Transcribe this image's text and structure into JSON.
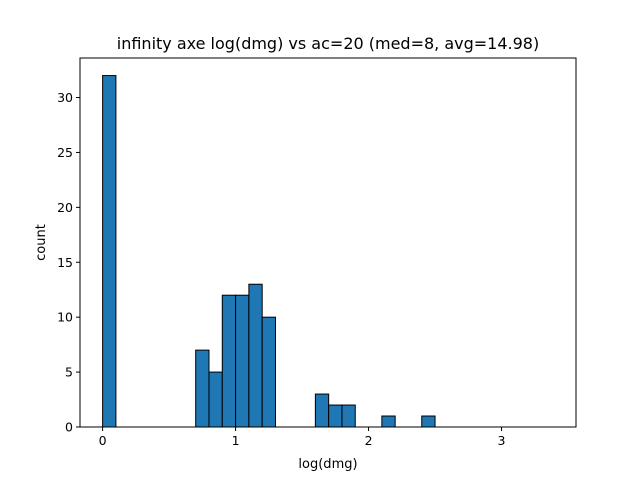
{
  "chart_data": {
    "type": "bar",
    "title": "infinity axe log(dmg) vs ac=20 (med=8, avg=14.98)",
    "xlabel": "log(dmg)",
    "ylabel": "count",
    "xlim": [
      -0.17,
      3.56
    ],
    "ylim": [
      0,
      33.6
    ],
    "xticks": [
      0,
      1,
      2,
      3
    ],
    "yticks": [
      0,
      5,
      10,
      15,
      20,
      25,
      30
    ],
    "bin_width": 0.1,
    "bar_color": "#1f77b4",
    "edge_color": "#000000",
    "bins": [
      {
        "x0": 0.0,
        "count": 32
      },
      {
        "x0": 0.1,
        "count": 0
      },
      {
        "x0": 0.2,
        "count": 0
      },
      {
        "x0": 0.3,
        "count": 0
      },
      {
        "x0": 0.4,
        "count": 0
      },
      {
        "x0": 0.5,
        "count": 0
      },
      {
        "x0": 0.6,
        "count": 0
      },
      {
        "x0": 0.7,
        "count": 7
      },
      {
        "x0": 0.8,
        "count": 5
      },
      {
        "x0": 0.9,
        "count": 12
      },
      {
        "x0": 1.0,
        "count": 12
      },
      {
        "x0": 1.1,
        "count": 13
      },
      {
        "x0": 1.2,
        "count": 10
      },
      {
        "x0": 1.3,
        "count": 0
      },
      {
        "x0": 1.4,
        "count": 0
      },
      {
        "x0": 1.5,
        "count": 0
      },
      {
        "x0": 1.6,
        "count": 3
      },
      {
        "x0": 1.7,
        "count": 2
      },
      {
        "x0": 1.8,
        "count": 2
      },
      {
        "x0": 1.9,
        "count": 0
      },
      {
        "x0": 2.0,
        "count": 0
      },
      {
        "x0": 2.1,
        "count": 1
      },
      {
        "x0": 2.2,
        "count": 0
      },
      {
        "x0": 2.3,
        "count": 0
      },
      {
        "x0": 2.4,
        "count": 1
      },
      {
        "x0": 2.5,
        "count": 0
      },
      {
        "x0": 2.6,
        "count": 0
      },
      {
        "x0": 2.7,
        "count": 0
      },
      {
        "x0": 2.8,
        "count": 0
      },
      {
        "x0": 2.9,
        "count": 0
      },
      {
        "x0": 3.0,
        "count": 0
      },
      {
        "x0": 3.1,
        "count": 0
      },
      {
        "x0": 3.2,
        "count": 0
      },
      {
        "x0": 3.3,
        "count": 0
      }
    ]
  }
}
